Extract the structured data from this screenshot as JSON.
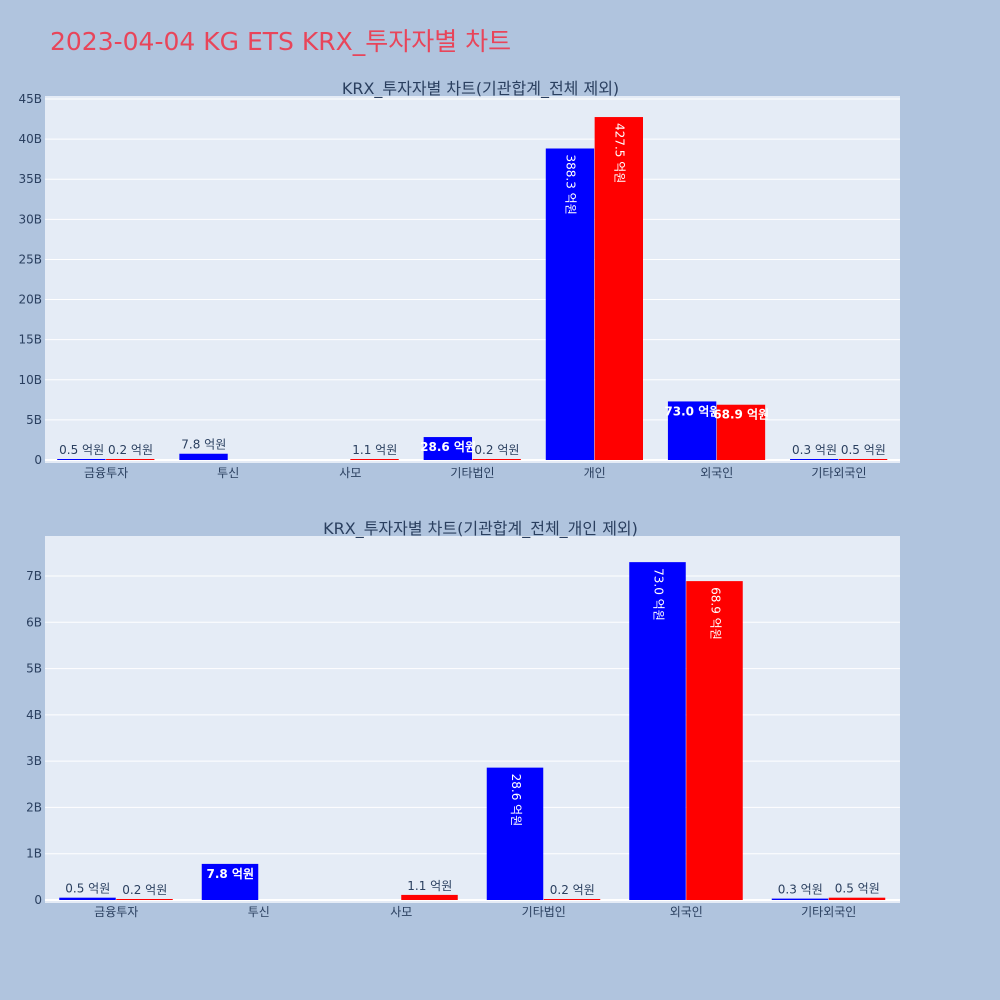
{
  "page": {
    "title": "2023-04-04 KG ETS KRX_투자자별 차트",
    "background": "#b0c4de",
    "title_color": "#e8455a",
    "plot_bg": "#e5ecf6",
    "grid_color": "#ffffff",
    "text_color": "#2a3f5f"
  },
  "chart_data": [
    {
      "type": "bar",
      "title": "KRX_투자자별 차트(기관합계_전체 제외)",
      "categories": [
        "금융투자",
        "투신",
        "사모",
        "기타법인",
        "개인",
        "외국인",
        "기타외국인"
      ],
      "series": [
        {
          "color": "#0000ff",
          "values": [
            0.05,
            0.78,
            0.0,
            2.86,
            38.83,
            7.3,
            0.03
          ],
          "labels": [
            "0.5 억원",
            "7.8 억원",
            "",
            "28.6 억원",
            "388.3 억원",
            "73.0 억원",
            "0.3 억원"
          ]
        },
        {
          "color": "#ff0000",
          "values": [
            0.02,
            0.0,
            0.11,
            0.02,
            42.75,
            6.89,
            0.05
          ],
          "labels": [
            "0.2 억원",
            "",
            "1.1 억원",
            "0.2 억원",
            "427.5 억원",
            "68.9 억원",
            "0.5 억원"
          ]
        }
      ],
      "ylim": [
        0,
        45
      ],
      "yticks": [
        "0",
        "5B",
        "10B",
        "15B",
        "20B",
        "25B",
        "30B",
        "35B",
        "40B",
        "45B"
      ],
      "ytick_values": [
        0,
        5,
        10,
        15,
        20,
        25,
        30,
        35,
        40,
        45
      ],
      "grid": true
    },
    {
      "type": "bar",
      "title": "KRX_투자자별 차트(기관합계_전체_개인 제외)",
      "categories": [
        "금융투자",
        "투신",
        "사모",
        "기타법인",
        "외국인",
        "기타외국인"
      ],
      "series": [
        {
          "color": "#0000ff",
          "values": [
            0.05,
            0.78,
            0.0,
            2.86,
            7.3,
            0.03
          ],
          "labels": [
            "0.5 억원",
            "7.8 억원",
            "",
            "28.6 억원",
            "73.0 억원",
            "0.3 억원"
          ]
        },
        {
          "color": "#ff0000",
          "values": [
            0.02,
            0.0,
            0.11,
            0.02,
            6.89,
            0.05
          ],
          "labels": [
            "0.2 억원",
            "",
            "1.1 억원",
            "0.2 억원",
            "68.9 억원",
            "0.5 억원"
          ]
        }
      ],
      "ylim": [
        0,
        7.8
      ],
      "yticks": [
        "0",
        "1B",
        "2B",
        "3B",
        "4B",
        "5B",
        "6B",
        "7B"
      ],
      "ytick_values": [
        0,
        1,
        2,
        3,
        4,
        5,
        6,
        7
      ],
      "grid": true
    }
  ]
}
